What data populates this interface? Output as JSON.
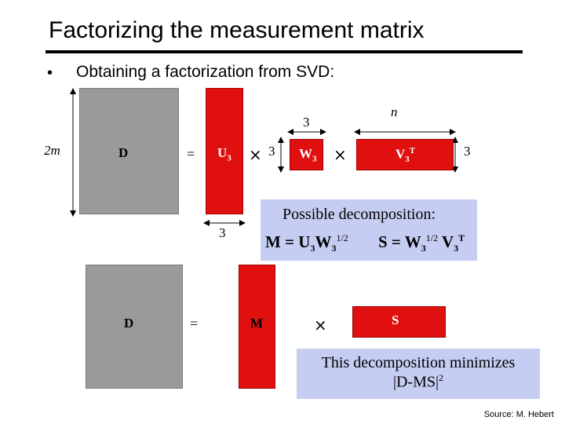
{
  "slide": {
    "title": "Factorizing the measurement matrix",
    "bullet_marker": "•",
    "bullet_text": "Obtaining a factorization from SVD:",
    "source": "Source: M. Hebert"
  },
  "top_row": {
    "d_label": "D",
    "equals": "=",
    "u_label": "U",
    "u_sub": "3",
    "times": "×",
    "w_label": "W",
    "w_sub": "3",
    "v_label": "V",
    "v_sub": "3",
    "v_sup": "T",
    "dim_2m": "2m",
    "dim_3_w_top": "3",
    "dim_3_w_left": "3",
    "dim_n": "n",
    "dim_3_v_right": "3",
    "dim_3_u_bottom": "3"
  },
  "decomposition_box": {
    "heading": "Possible decomposition:",
    "m_eq": "M = U",
    "m_sub1": "3",
    "m_w": "W",
    "m_sub2": "3",
    "m_sup": "1/2",
    "s_eq": "S = W",
    "s_sub1": "3",
    "s_sup1": "1/2",
    "s_v": "V",
    "s_sub2": "3",
    "s_sup2": "T"
  },
  "bottom_row": {
    "d_label": "D",
    "equals": "=",
    "m_label": "M",
    "times": "×",
    "s_label": "S"
  },
  "minimize_box": {
    "line1": "This decomposition minimizes",
    "line2": "|D-MS|",
    "sup": "2"
  },
  "colors": {
    "matrix_gray": "#9a9a9a",
    "matrix_red": "#e01010",
    "box_blue": "#c6cdf2"
  }
}
